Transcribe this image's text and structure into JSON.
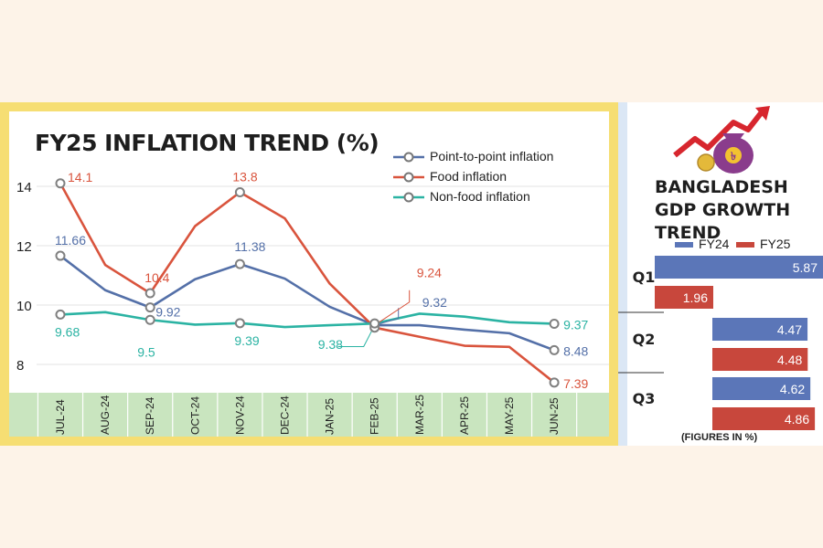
{
  "colors": {
    "point_to_point": "#5470a8",
    "food": "#d9543d",
    "non_food": "#2bb3a3",
    "fy24_bar": "#5b76b8",
    "fy25_bar": "#c8473c",
    "axis_band": "#c9e5bf",
    "gold_frame": "#f6de73"
  },
  "chart_data": [
    {
      "type": "line",
      "title": "FY25 INFLATION TREND (%)",
      "categories": [
        "JUL-24",
        "AUG-24",
        "SEP-24",
        "OCT-24",
        "NOV-24",
        "DEC-24",
        "JAN-25",
        "FEB-25",
        "MAR-25",
        "APR-25",
        "MAY-25",
        "JUN-25"
      ],
      "yticks": [
        "14",
        "12",
        "10",
        "8"
      ],
      "ylim": [
        7,
        15
      ],
      "grid": true,
      "legend_position": "top-right",
      "series": [
        {
          "name": "Point-to-point inflation",
          "values": [
            11.66,
            10.5,
            9.92,
            10.87,
            11.38,
            10.89,
            9.94,
            9.32,
            9.32,
            9.17,
            9.05,
            8.48
          ],
          "labels": {
            "0": "11.66",
            "2": "9.92",
            "4": "11.38",
            "7": "9.32",
            "11": "8.48"
          }
        },
        {
          "name": "Food inflation",
          "values": [
            14.1,
            11.35,
            10.4,
            12.66,
            13.8,
            12.92,
            10.72,
            9.24,
            8.93,
            8.63,
            8.59,
            7.39
          ],
          "labels": {
            "0": "14.1",
            "2": "10.4",
            "4": "13.8",
            "7": "9.24",
            "11": "7.39"
          }
        },
        {
          "name": "Non-food inflation",
          "values": [
            9.68,
            9.76,
            9.5,
            9.34,
            9.39,
            9.26,
            9.32,
            9.38,
            9.71,
            9.61,
            9.42,
            9.37
          ],
          "labels": {
            "0": "9.68",
            "2": "9.5",
            "4": "9.39",
            "7": "9.38",
            "11": "9.37"
          }
        }
      ]
    },
    {
      "type": "bar",
      "title": "BANGLADESH GDP GROWTH TREND",
      "orientation": "horizontal",
      "categories": [
        "Q1",
        "Q2",
        "Q3"
      ],
      "series": [
        {
          "name": "FY24",
          "values": [
            5.87,
            4.47,
            4.62
          ]
        },
        {
          "name": "FY25",
          "values": [
            1.96,
            4.48,
            4.86
          ]
        }
      ],
      "note": "(FIGURES IN %)"
    }
  ]
}
